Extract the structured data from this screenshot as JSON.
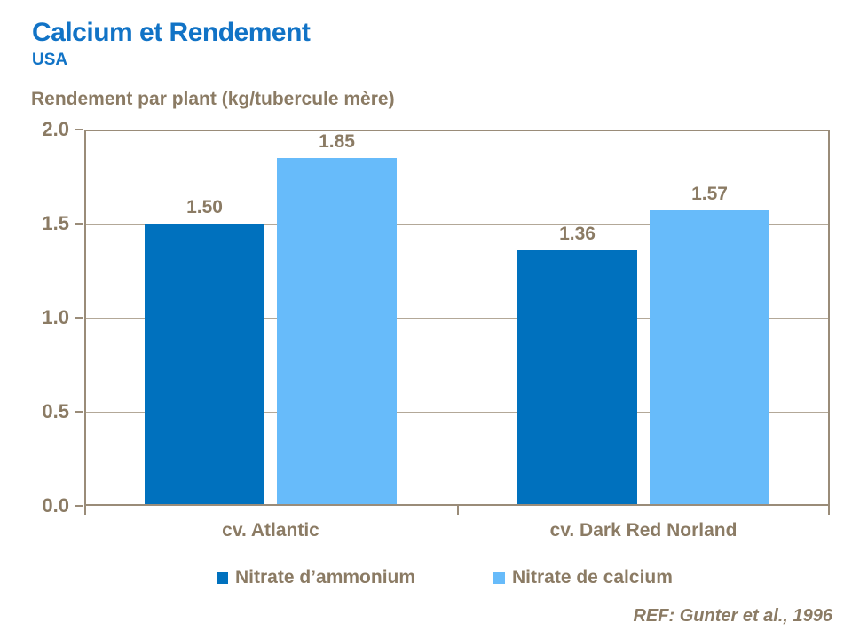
{
  "header": {
    "title": "Calcium et Rendement",
    "subtitle": "USA"
  },
  "colors": {
    "accent_blue": "#1173C6",
    "label_taupe": "#8B7B64",
    "axis_line": "#9A8C79",
    "gridline": "#B3A898",
    "series_dark_blue": "#0071BE",
    "series_light_blue": "#67BBFA"
  },
  "chart_data": {
    "type": "bar",
    "title": "Rendement par plant (kg/tubercule mère)",
    "categories": [
      "cv. Atlantic",
      "cv. Dark Red Norland"
    ],
    "series": [
      {
        "name": "Nitrate d’ammonium",
        "color": "#0071BE",
        "values": [
          1.5,
          1.36
        ],
        "labels": [
          "1.50",
          "1.36"
        ]
      },
      {
        "name": "Nitrate de calcium",
        "color": "#67BBFA",
        "values": [
          1.85,
          1.57
        ],
        "labels": [
          "1.85",
          "1.57"
        ]
      }
    ],
    "ylim": [
      0.0,
      2.0
    ],
    "yticks": [
      "2.0",
      "1.5",
      "1.0",
      "0.5",
      "0.0"
    ],
    "grid": true,
    "legend_position": "bottom"
  },
  "footer": {
    "ref": "REF: Gunter et al., 1996"
  }
}
